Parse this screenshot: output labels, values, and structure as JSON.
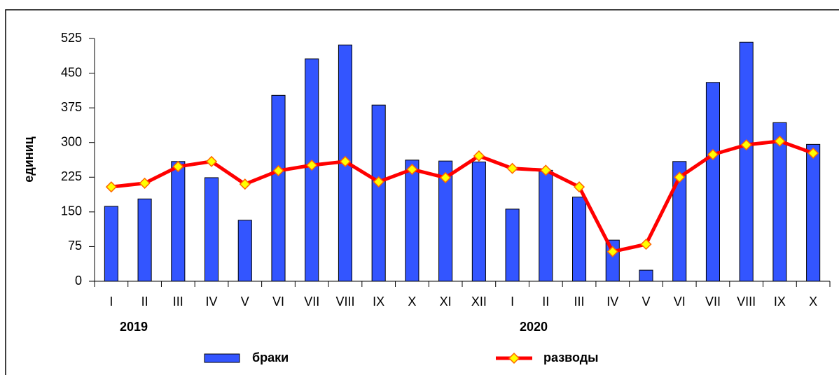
{
  "chart_data": {
    "type": "bar",
    "y_label": "единиц",
    "annotations": [
      "2019",
      "2020"
    ],
    "categories": [
      "I",
      "II",
      "III",
      "IV",
      "V",
      "VI",
      "VII",
      "VIII",
      "IX",
      "X",
      "XI",
      "XII",
      "I",
      "II",
      "III",
      "IV",
      "V",
      "VI",
      "VII",
      "VIII",
      "IX",
      "X"
    ],
    "series": [
      {
        "name": "браки",
        "type": "bar",
        "color": "#3355ff",
        "values": [
          162,
          178,
          259,
          224,
          132,
          402,
          481,
          511,
          381,
          262,
          260,
          258,
          156,
          240,
          182,
          89,
          24,
          259,
          430,
          517,
          343,
          296
        ]
      },
      {
        "name": "разводы",
        "type": "line",
        "color": "#ff0000",
        "marker_color": "#ffff00",
        "values": [
          204,
          212,
          248,
          259,
          210,
          239,
          251,
          259,
          215,
          242,
          224,
          271,
          244,
          240,
          204,
          64,
          80,
          225,
          274,
          295,
          303,
          277
        ]
      }
    ],
    "ylim": [
      0,
      525
    ],
    "yticks": [
      0,
      75,
      150,
      225,
      300,
      375,
      450,
      525
    ],
    "grid": false
  }
}
